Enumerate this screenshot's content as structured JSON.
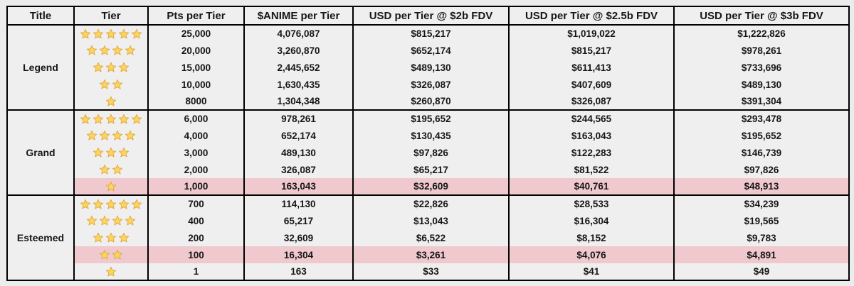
{
  "chart_data": {
    "type": "table",
    "columns": [
      "Title",
      "Tier",
      "Pts per Tier",
      "$ANIME per Tier",
      "USD per Tier @ $2b FDV",
      "USD per Tier @ $2.5b FDV",
      "USD per Tier @ $3b FDV"
    ],
    "groups": [
      {
        "title": "Legend",
        "rows": [
          {
            "stars": 5,
            "pts": "25,000",
            "anime": "4,076,087",
            "usd_2b": "$815,217",
            "usd_2_5b": "$1,019,022",
            "usd_3b": "$1,222,826",
            "highlight": false
          },
          {
            "stars": 4,
            "pts": "20,000",
            "anime": "3,260,870",
            "usd_2b": "$652,174",
            "usd_2_5b": "$815,217",
            "usd_3b": "$978,261",
            "highlight": false
          },
          {
            "stars": 3,
            "pts": "15,000",
            "anime": "2,445,652",
            "usd_2b": "$489,130",
            "usd_2_5b": "$611,413",
            "usd_3b": "$733,696",
            "highlight": false
          },
          {
            "stars": 2,
            "pts": "10,000",
            "anime": "1,630,435",
            "usd_2b": "$326,087",
            "usd_2_5b": "$407,609",
            "usd_3b": "$489,130",
            "highlight": false
          },
          {
            "stars": 1,
            "pts": "8000",
            "anime": "1,304,348",
            "usd_2b": "$260,870",
            "usd_2_5b": "$326,087",
            "usd_3b": "$391,304",
            "highlight": false
          }
        ]
      },
      {
        "title": "Grand",
        "rows": [
          {
            "stars": 5,
            "pts": "6,000",
            "anime": "978,261",
            "usd_2b": "$195,652",
            "usd_2_5b": "$244,565",
            "usd_3b": "$293,478",
            "highlight": false
          },
          {
            "stars": 4,
            "pts": "4,000",
            "anime": "652,174",
            "usd_2b": "$130,435",
            "usd_2_5b": "$163,043",
            "usd_3b": "$195,652",
            "highlight": false
          },
          {
            "stars": 3,
            "pts": "3,000",
            "anime": "489,130",
            "usd_2b": "$97,826",
            "usd_2_5b": "$122,283",
            "usd_3b": "$146,739",
            "highlight": false
          },
          {
            "stars": 2,
            "pts": "2,000",
            "anime": "326,087",
            "usd_2b": "$65,217",
            "usd_2_5b": "$81,522",
            "usd_3b": "$97,826",
            "highlight": false
          },
          {
            "stars": 1,
            "pts": "1,000",
            "anime": "163,043",
            "usd_2b": "$32,609",
            "usd_2_5b": "$40,761",
            "usd_3b": "$48,913",
            "highlight": true
          }
        ]
      },
      {
        "title": "Esteemed",
        "rows": [
          {
            "stars": 5,
            "pts": "700",
            "anime": "114,130",
            "usd_2b": "$22,826",
            "usd_2_5b": "$28,533",
            "usd_3b": "$34,239",
            "highlight": false
          },
          {
            "stars": 4,
            "pts": "400",
            "anime": "65,217",
            "usd_2b": "$13,043",
            "usd_2_5b": "$16,304",
            "usd_3b": "$19,565",
            "highlight": false
          },
          {
            "stars": 3,
            "pts": "200",
            "anime": "32,609",
            "usd_2b": "$6,522",
            "usd_2_5b": "$8,152",
            "usd_3b": "$9,783",
            "highlight": false
          },
          {
            "stars": 2,
            "pts": "100",
            "anime": "16,304",
            "usd_2b": "$3,261",
            "usd_2_5b": "$4,076",
            "usd_3b": "$4,891",
            "highlight": true
          },
          {
            "stars": 1,
            "pts": "1",
            "anime": "163",
            "usd_2b": "$33",
            "usd_2_5b": "$41",
            "usd_3b": "$49",
            "highlight": false
          }
        ]
      }
    ]
  },
  "colors": {
    "page_bg": "#ececec",
    "cell_bg": "#efefef",
    "highlight_row": "#f0c9ce",
    "border": "#000000",
    "star_fill": "#fbd65e",
    "star_stroke": "#e2a63d"
  },
  "icons": {
    "tier_star": "star-icon"
  }
}
